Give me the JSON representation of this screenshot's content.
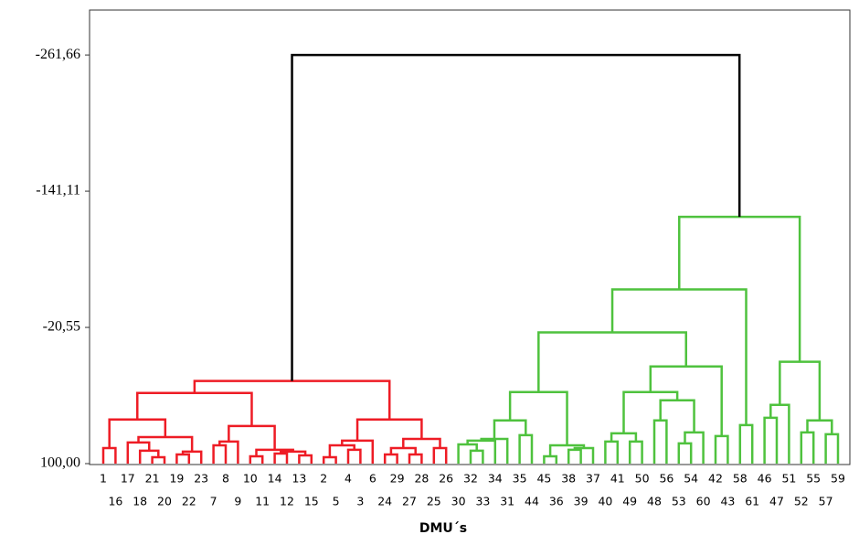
{
  "chart_data": {
    "type": "dendrogram",
    "xlabel": "DMU´s",
    "ylim": [
      100,
      -300.6
    ],
    "yticks": [
      {
        "value": -261.66,
        "label": "-261,66"
      },
      {
        "value": -141.11,
        "label": "-141,11"
      },
      {
        "value": -20.55,
        "label": "-20,55"
      },
      {
        "value": 100,
        "label": "100,00"
      }
    ],
    "leaves": [
      "1",
      "16",
      "17",
      "18",
      "21",
      "20",
      "19",
      "22",
      "23",
      "7",
      "8",
      "9",
      "10",
      "11",
      "14",
      "12",
      "13",
      "15",
      "2",
      "5",
      "4",
      "3",
      "6",
      "24",
      "29",
      "27",
      "28",
      "25",
      "26",
      "30",
      "32",
      "33",
      "34",
      "31",
      "35",
      "44",
      "45",
      "36",
      "38",
      "39",
      "37",
      "40",
      "41",
      "49",
      "50",
      "48",
      "56",
      "53",
      "54",
      "60",
      "42",
      "43",
      "58",
      "61",
      "46",
      "47",
      "51",
      "52",
      "55",
      "57",
      "59"
    ],
    "merges": [
      {
        "children": [
          4,
          5
        ],
        "height": 94.3,
        "color": "#ee1c25"
      },
      {
        "children": [
          3,
          61
        ],
        "height": 88.6,
        "color": "#ee1c25"
      },
      {
        "children": [
          2,
          62
        ],
        "height": 81.3,
        "color": "#ee1c25"
      },
      {
        "children": [
          6,
          7
        ],
        "height": 91.9,
        "color": "#ee1c25"
      },
      {
        "children": [
          64,
          8
        ],
        "height": 89.4,
        "color": "#ee1c25"
      },
      {
        "children": [
          63,
          65
        ],
        "height": 76.5,
        "color": "#ee1c25"
      },
      {
        "children": [
          0,
          1
        ],
        "height": 86.2,
        "color": "#ee1c25"
      },
      {
        "children": [
          67,
          66
        ],
        "height": 61.0,
        "color": "#ee1c25"
      },
      {
        "children": [
          9,
          10
        ],
        "height": 83.8,
        "color": "#ee1c25"
      },
      {
        "children": [
          69,
          11
        ],
        "height": 80.5,
        "color": "#ee1c25"
      },
      {
        "children": [
          12,
          13
        ],
        "height": 93.5,
        "color": "#ee1c25"
      },
      {
        "children": [
          14,
          15
        ],
        "height": 91.1,
        "color": "#ee1c25"
      },
      {
        "children": [
          16,
          17
        ],
        "height": 92.7,
        "color": "#ee1c25"
      },
      {
        "children": [
          72,
          73
        ],
        "height": 89.4,
        "color": "#ee1c25"
      },
      {
        "children": [
          71,
          74
        ],
        "height": 87.8,
        "color": "#ee1c25"
      },
      {
        "children": [
          70,
          75
        ],
        "height": 66.7,
        "color": "#ee1c25"
      },
      {
        "children": [
          68,
          76
        ],
        "height": 37.5,
        "color": "#ee1c25"
      },
      {
        "children": [
          18,
          19
        ],
        "height": 94.3,
        "color": "#ee1c25"
      },
      {
        "children": [
          20,
          21
        ],
        "height": 87.8,
        "color": "#ee1c25"
      },
      {
        "children": [
          78,
          79
        ],
        "height": 83.8,
        "color": "#ee1c25"
      },
      {
        "children": [
          80,
          22
        ],
        "height": 79.7,
        "color": "#ee1c25"
      },
      {
        "children": [
          23,
          24
        ],
        "height": 91.9,
        "color": "#ee1c25"
      },
      {
        "children": [
          25,
          26
        ],
        "height": 91.9,
        "color": "#ee1c25"
      },
      {
        "children": [
          82,
          83
        ],
        "height": 86.2,
        "color": "#ee1c25"
      },
      {
        "children": [
          27,
          28
        ],
        "height": 86.2,
        "color": "#ee1c25"
      },
      {
        "children": [
          84,
          85
        ],
        "height": 78.1,
        "color": "#ee1c25"
      },
      {
        "children": [
          81,
          86
        ],
        "height": 61.0,
        "color": "#ee1c25"
      },
      {
        "children": [
          77,
          87
        ],
        "height": 26.9,
        "color": "#ee1c25"
      },
      {
        "children": [
          30,
          31
        ],
        "height": 88.6,
        "color": "#4fc23e"
      },
      {
        "children": [
          29,
          89
        ],
        "height": 83.0,
        "color": "#4fc23e"
      },
      {
        "children": [
          90,
          32
        ],
        "height": 79.7,
        "color": "#4fc23e"
      },
      {
        "children": [
          91,
          33
        ],
        "height": 78.1,
        "color": "#4fc23e"
      },
      {
        "children": [
          34,
          35
        ],
        "height": 74.8,
        "color": "#4fc23e"
      },
      {
        "children": [
          92,
          93
        ],
        "height": 61.8,
        "color": "#4fc23e"
      },
      {
        "children": [
          36,
          37
        ],
        "height": 93.5,
        "color": "#4fc23e"
      },
      {
        "children": [
          38,
          39
        ],
        "height": 87.8,
        "color": "#4fc23e"
      },
      {
        "children": [
          96,
          40
        ],
        "height": 86.2,
        "color": "#4fc23e"
      },
      {
        "children": [
          95,
          97
        ],
        "height": 83.8,
        "color": "#4fc23e"
      },
      {
        "children": [
          94,
          98
        ],
        "height": 36.7,
        "color": "#4fc23e"
      },
      {
        "children": [
          41,
          42
        ],
        "height": 80.5,
        "color": "#4fc23e"
      },
      {
        "children": [
          43,
          44
        ],
        "height": 80.5,
        "color": "#4fc23e"
      },
      {
        "children": [
          100,
          101
        ],
        "height": 73.2,
        "color": "#4fc23e"
      },
      {
        "children": [
          45,
          46
        ],
        "height": 61.8,
        "color": "#4fc23e"
      },
      {
        "children": [
          47,
          48
        ],
        "height": 82.1,
        "color": "#4fc23e"
      },
      {
        "children": [
          104,
          49
        ],
        "height": 72.4,
        "color": "#4fc23e"
      },
      {
        "children": [
          103,
          105
        ],
        "height": 44.0,
        "color": "#4fc23e"
      },
      {
        "children": [
          102,
          106
        ],
        "height": 36.7,
        "color": "#4fc23e"
      },
      {
        "children": [
          50,
          51
        ],
        "height": 75.6,
        "color": "#4fc23e"
      },
      {
        "children": [
          107,
          108
        ],
        "height": 14.0,
        "color": "#4fc23e"
      },
      {
        "children": [
          99,
          109
        ],
        "height": -16.1,
        "color": "#4fc23e"
      },
      {
        "children": [
          52,
          53
        ],
        "height": 65.9,
        "color": "#4fc23e"
      },
      {
        "children": [
          54,
          55
        ],
        "height": 59.4,
        "color": "#4fc23e"
      },
      {
        "children": [
          112,
          56
        ],
        "height": 48.0,
        "color": "#4fc23e"
      },
      {
        "children": [
          57,
          58
        ],
        "height": 72.4,
        "color": "#4fc23e"
      },
      {
        "children": [
          59,
          60
        ],
        "height": 74.0,
        "color": "#4fc23e"
      },
      {
        "children": [
          114,
          115
        ],
        "height": 61.8,
        "color": "#4fc23e"
      },
      {
        "children": [
          113,
          116
        ],
        "height": 9.9,
        "color": "#4fc23e"
      },
      {
        "children": [
          110,
          111
        ],
        "height": -54.2,
        "color": "#4fc23e"
      },
      {
        "children": [
          118,
          117
        ],
        "height": -118.4,
        "color": "#4fc23e"
      },
      {
        "children": [
          88,
          119
        ],
        "height": -261.66,
        "color": "#000000"
      }
    ]
  }
}
